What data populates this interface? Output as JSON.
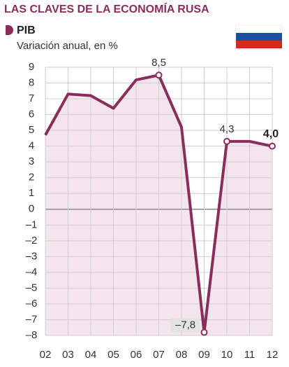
{
  "chart_data": {
    "type": "line",
    "title": "LAS CLAVES DE LA ECONOMÍA RUSA",
    "subtitle": "Variación anual, en %",
    "categories": [
      "02",
      "03",
      "04",
      "05",
      "06",
      "07",
      "08",
      "09",
      "10",
      "11",
      "12"
    ],
    "series": [
      {
        "name": "PIB",
        "color": "#8b2d5c",
        "fill": "#f4e4eb",
        "values": [
          4.7,
          7.3,
          7.2,
          6.4,
          8.2,
          8.5,
          5.2,
          -7.8,
          4.3,
          4.3,
          4.0
        ],
        "value_labels": [
          null,
          null,
          null,
          null,
          null,
          "8,5",
          null,
          "–7,8",
          "4,3",
          null,
          "4,0"
        ]
      }
    ],
    "ylim": [
      -8,
      9
    ],
    "yticks": [
      {
        "value": -8,
        "label": "–8"
      },
      {
        "value": -7,
        "label": "–7"
      },
      {
        "value": -6,
        "label": "–6"
      },
      {
        "value": -5,
        "label": "–5"
      },
      {
        "value": -4,
        "label": "–4"
      },
      {
        "value": -3,
        "label": "–3"
      },
      {
        "value": -2,
        "label": "–2"
      },
      {
        "value": -1,
        "label": "–1"
      },
      0,
      1,
      2,
      3,
      4,
      5,
      6,
      7,
      8,
      9
    ],
    "grid": true
  }
}
